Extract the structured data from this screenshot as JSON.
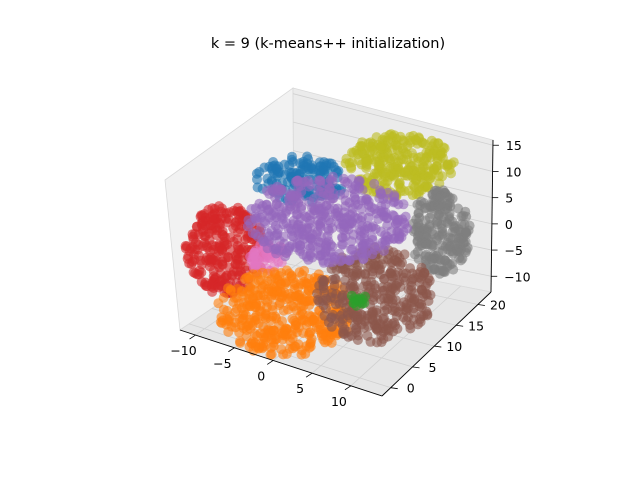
{
  "chart_data": {
    "type": "scatter",
    "projection": "3d",
    "title": "k = 9 (k-means++ initialization)",
    "xlabel": "",
    "ylabel": "",
    "zlabel": "",
    "xlim": [
      -12,
      14
    ],
    "ylim": [
      -2,
      23
    ],
    "zlim": [
      -13,
      16
    ],
    "x_ticks": [
      "−10",
      "−5",
      "0",
      "5",
      "10"
    ],
    "y_ticks": [
      "0",
      "5",
      "10",
      "15",
      "20"
    ],
    "z_ticks": [
      "−10",
      "−5",
      "0",
      "5",
      "10",
      "15"
    ],
    "grid": true,
    "legend": "none",
    "n_clusters": 9,
    "clusters": [
      {
        "color": "#1f77b4",
        "center": [
          -3,
          17,
          10
        ]
      },
      {
        "color": "#bcbd22",
        "center": [
          5,
          19,
          12
        ]
      },
      {
        "color": "#7f7f7f",
        "center": [
          12,
          15,
          2
        ]
      },
      {
        "color": "#d62728",
        "center": [
          -9,
          10,
          0
        ]
      },
      {
        "color": "#e377c2",
        "center": [
          -4,
          6,
          -7
        ]
      },
      {
        "color": "#ff7f0e",
        "center": [
          1,
          2,
          -9
        ]
      },
      {
        "color": "#8c564b",
        "center": [
          10,
          8,
          -6
        ]
      },
      {
        "color": "#2ca02c",
        "center": [
          5,
          6,
          -12
        ]
      },
      {
        "color": "#9467bd",
        "center": [
          1,
          10,
          4
        ]
      }
    ]
  }
}
